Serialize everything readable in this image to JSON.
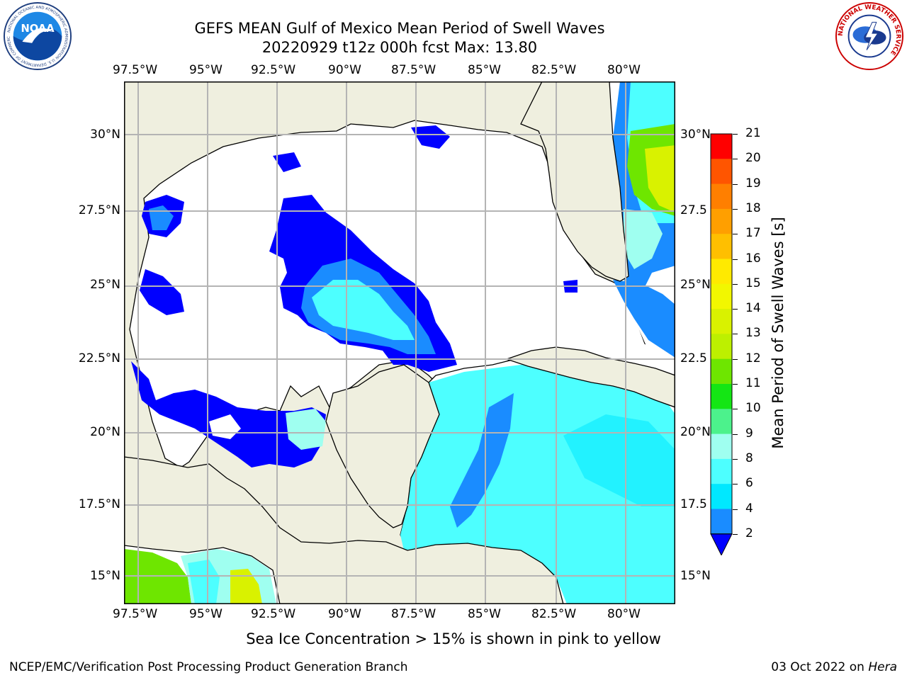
{
  "header": {
    "title_line1": "GEFS MEAN Gulf of Mexico Mean Period of Swell Waves",
    "title_line2": "20220929 t12z 000h fcst   Max: 13.80"
  },
  "logos": {
    "left": {
      "name": "NOAA",
      "ring_text": "NATIONAL OCEANIC AND ATMOSPHERIC ADMINISTRATION",
      "bottom_text": "U.S. DEPARTMENT OF COMMERCE"
    },
    "right": {
      "name": "NATIONAL WEATHER SERVICE"
    }
  },
  "axes": {
    "lon_labels": [
      "97.5°W",
      "95°W",
      "92.5°W",
      "90°W",
      "87.5°W",
      "85°W",
      "82.5°W",
      "80°W"
    ],
    "lat_labels_left": [
      "30°N",
      "27.5°N",
      "25°N",
      "22.5°N",
      "20°N",
      "17.5°N",
      "15°N"
    ],
    "lat_labels_right": [
      "30°N",
      "27.5",
      "25°N",
      "22.5",
      "20°N",
      "17.5",
      "15°N"
    ]
  },
  "colorbar": {
    "label": "Mean Period of Swell Waves [s]",
    "ticks": [
      "21",
      "20",
      "19",
      "18",
      "17",
      "16",
      "15",
      "14",
      "13",
      "12",
      "11",
      "10",
      "9",
      "8",
      "6",
      "4",
      "2"
    ],
    "colors": [
      "#ff0000",
      "#ff2a00",
      "#ff5500",
      "#ff7f00",
      "#ff9f00",
      "#ffbf00",
      "#ffea00",
      "#f2f700",
      "#d9f200",
      "#bdf000",
      "#6ee600",
      "#14e614",
      "#4cf28c",
      "#9ffff0",
      "#4dffff",
      "#00e8ff",
      "#1a8cff",
      "#0000ff"
    ]
  },
  "footer": {
    "sea_ice_note": "Sea Ice Concentration > 15% is shown in pink to yellow",
    "credit": "NCEP/EMC/Verification Post Processing Product Generation Branch",
    "date_prefix": "03 Oct 2022 on ",
    "machine": "Hera"
  },
  "colors": {
    "land": "#efefdf",
    "ocean_missing": "#ffffff",
    "gridline": "#b4b4b4",
    "period_2_4": "#0000ff",
    "period_4_6": "#1a8cff",
    "period_6_8": "#4dffff",
    "period_8_9": "#00e8ff",
    "period_9_10": "#9ffff0",
    "period_10_12": "#6ee600",
    "period_12_14": "#d9f200"
  }
}
